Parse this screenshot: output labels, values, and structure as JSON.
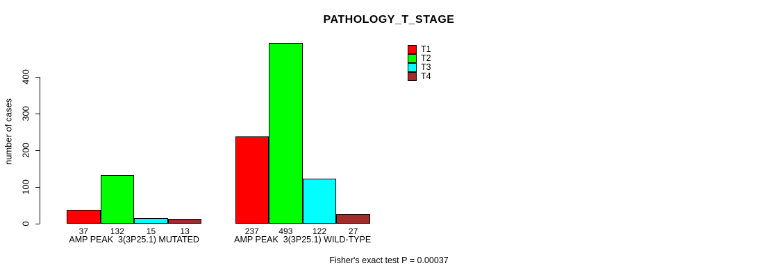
{
  "chart_data": {
    "type": "bar",
    "title": "PATHOLOGY_T_STAGE",
    "ylabel": "number of cases",
    "ylim": [
      0,
      400
    ],
    "yticks": [
      0,
      100,
      200,
      300,
      400
    ],
    "grid": false,
    "legend_position": "top-right",
    "categories": [
      "AMP PEAK  3(3P25.1) MUTATED",
      "AMP PEAK  3(3P25.1) WILD-TYPE"
    ],
    "series": [
      {
        "name": "T1",
        "color": "#FF0000",
        "values": [
          37,
          237
        ]
      },
      {
        "name": "T2",
        "color": "#00FF00",
        "values": [
          132,
          493
        ]
      },
      {
        "name": "T3",
        "color": "#00FFFF",
        "values": [
          15,
          122
        ]
      },
      {
        "name": "T4",
        "color": "#A52A2A",
        "values": [
          13,
          27
        ]
      }
    ],
    "bar_value_labels": [
      [
        "37",
        "132",
        "15",
        "13"
      ],
      [
        "237",
        "493",
        "122",
        "27"
      ]
    ],
    "footnote": "Fisher's exact test P = 0.00037"
  }
}
